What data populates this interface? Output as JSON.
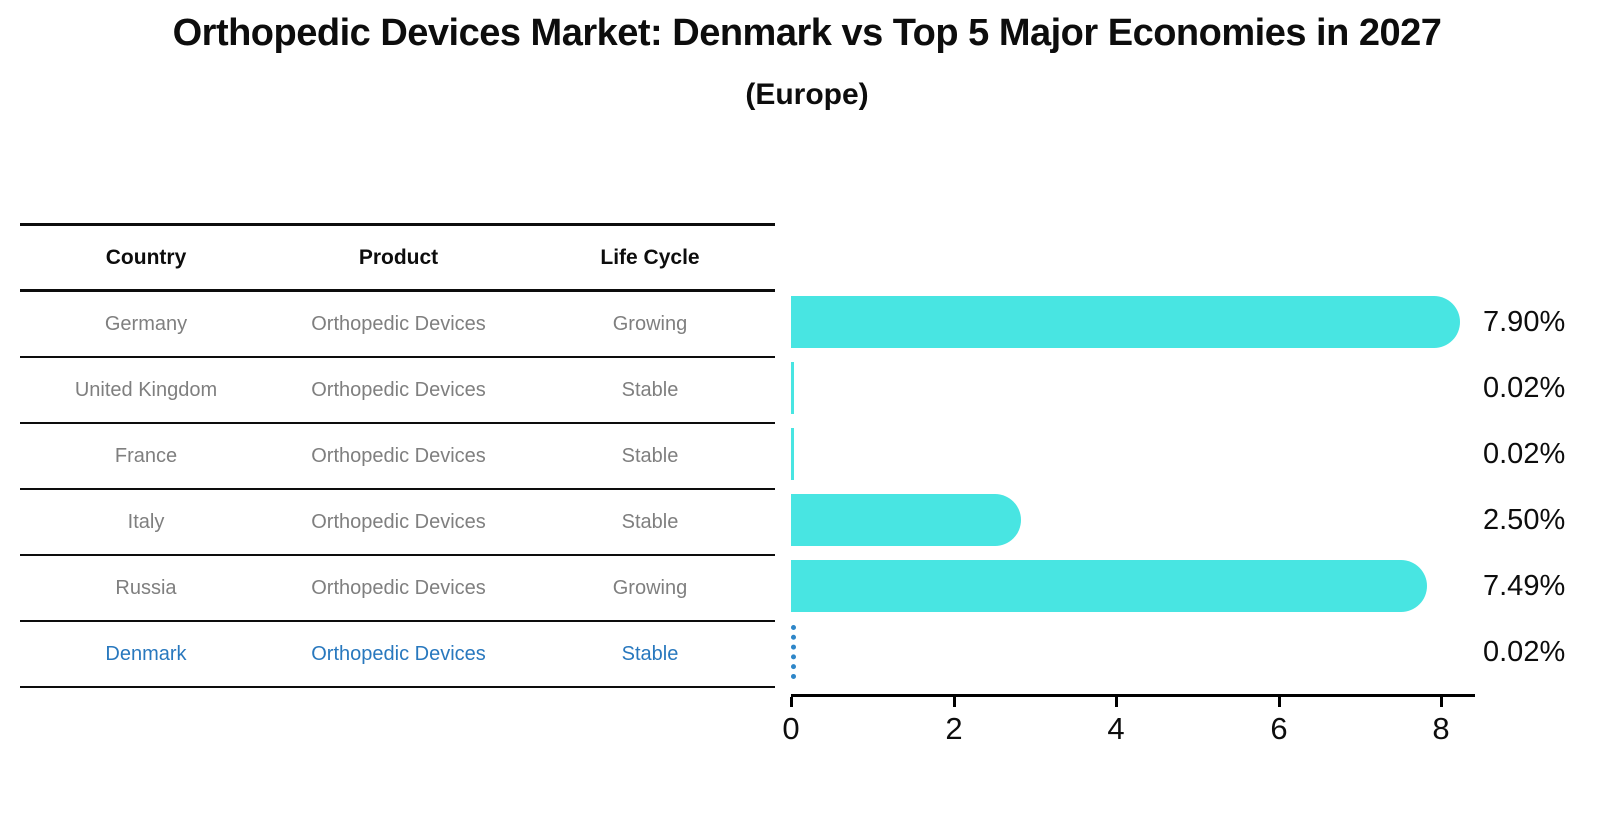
{
  "title": "Orthopedic Devices Market: Denmark vs Top 5 Major Economies in 2027",
  "subtitle": "(Europe)",
  "table": {
    "headers": [
      "Country",
      "Product",
      "Life Cycle"
    ],
    "rows": [
      {
        "country": "Germany",
        "product": "Orthopedic Devices",
        "life_cycle": "Growing",
        "highlight": false
      },
      {
        "country": "United Kingdom",
        "product": "Orthopedic Devices",
        "life_cycle": "Stable",
        "highlight": false
      },
      {
        "country": "France",
        "product": "Orthopedic Devices",
        "life_cycle": "Stable",
        "highlight": false
      },
      {
        "country": "Italy",
        "product": "Orthopedic Devices",
        "life_cycle": "Stable",
        "highlight": false
      },
      {
        "country": "Russia",
        "product": "Orthopedic Devices",
        "life_cycle": "Growing",
        "highlight": false
      },
      {
        "country": "Denmark",
        "product": "Orthopedic Devices",
        "life_cycle": "Stable",
        "highlight": true
      }
    ]
  },
  "chart_data": {
    "type": "bar",
    "orientation": "horizontal",
    "title": "Orthopedic Devices Market: Denmark vs Top 5 Major Economies in 2027",
    "subtitle": "(Europe)",
    "categories": [
      "Germany",
      "United Kingdom",
      "France",
      "Italy",
      "Russia",
      "Denmark"
    ],
    "values": [
      7.9,
      0.02,
      0.02,
      2.5,
      7.49,
      0.02
    ],
    "value_labels": [
      "7.90%",
      "0.02%",
      "0.02%",
      "2.50%",
      "7.49%",
      "0.02%"
    ],
    "xlim": [
      0,
      8.5
    ],
    "xticks": [
      0,
      2,
      4,
      6,
      8
    ],
    "xtick_labels": [
      "0",
      "2",
      "4",
      "6",
      "8"
    ],
    "grid": false,
    "legend": "none",
    "bar_color": "#48E5E2",
    "highlight_color": "#2E86C8",
    "highlight_index": 5,
    "highlight_style": "dotted-outline"
  },
  "colors": {
    "background": "#ffffff",
    "text": "#0d0d0d",
    "muted_text": "#7f7f7f",
    "accent_blue": "#2878BE",
    "bar_cyan": "#48E5E2"
  }
}
